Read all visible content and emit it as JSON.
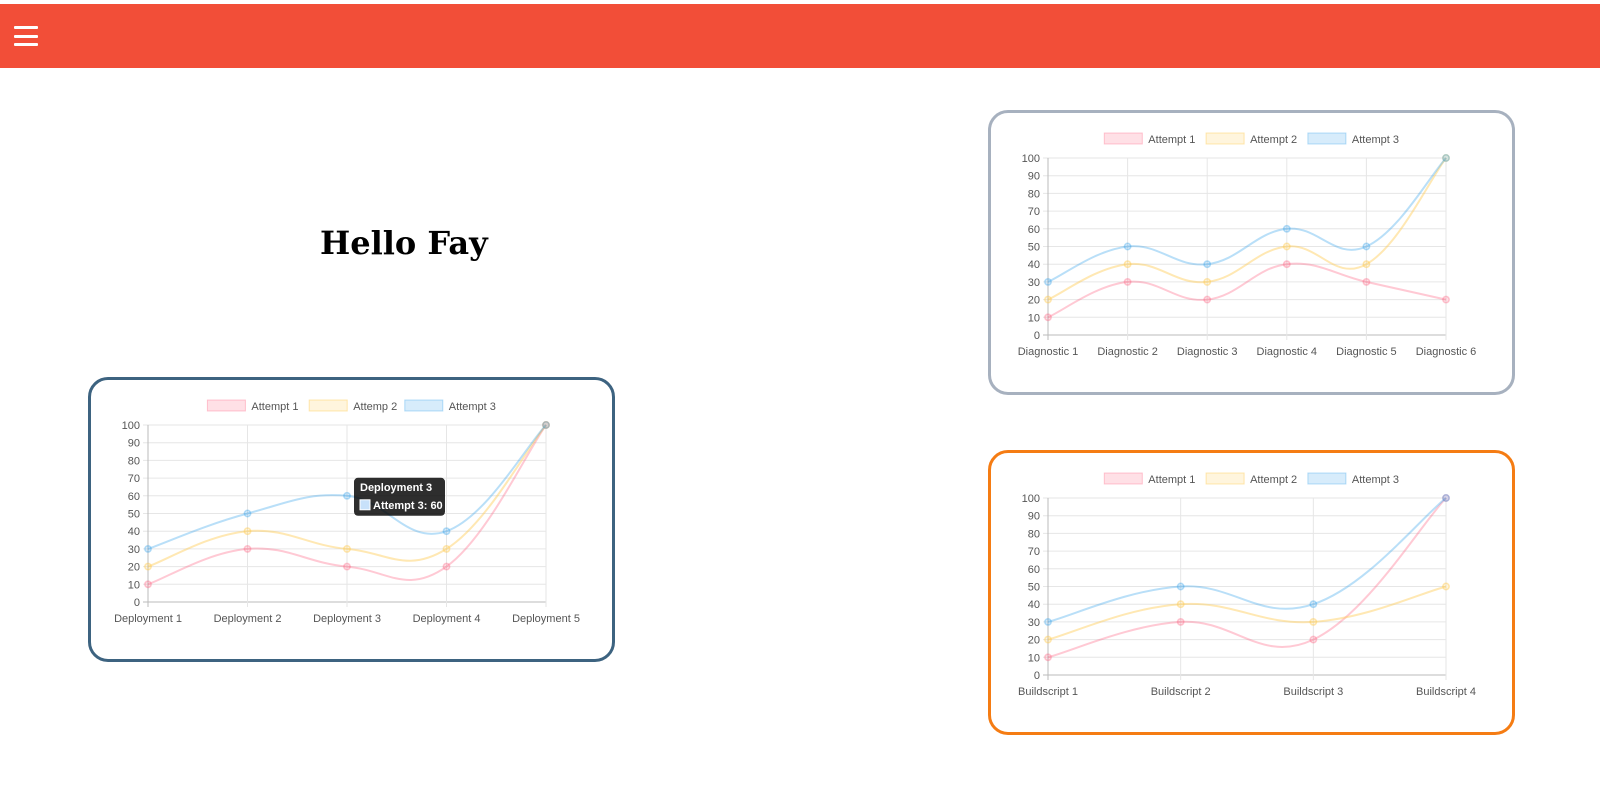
{
  "header": {
    "menu_icon": "hamburger-menu-icon",
    "background_color": "#f24e38"
  },
  "greeting": "Hello Fay",
  "series_colors": {
    "line": [
      "rgba(255,99,132,0.35)",
      "rgba(255,205,86,0.45)",
      "rgba(54,162,235,0.35)"
    ],
    "fill": [
      "rgba(255,99,132,0.2)",
      "rgba(255,205,86,0.2)",
      "rgba(54,162,235,0.2)"
    ]
  },
  "chart_data": [
    {
      "id": "deploy",
      "type": "line",
      "border_color": "#3d6380",
      "categories": [
        "Deployment 1",
        "Deployment 2",
        "Deployment 3",
        "Deployment 4",
        "Deployment 5"
      ],
      "series": [
        {
          "name": "Attempt 1",
          "values": [
            10,
            30,
            20,
            20,
            100
          ]
        },
        {
          "name": "Attemp 2",
          "values": [
            20,
            40,
            30,
            30,
            100
          ]
        },
        {
          "name": "Attempt 3",
          "values": [
            30,
            50,
            60,
            40,
            100
          ]
        }
      ],
      "ylim": [
        0,
        100
      ],
      "yticks": [
        0,
        10,
        20,
        30,
        40,
        50,
        60,
        70,
        80,
        90,
        100
      ],
      "grid": true,
      "legend": "top",
      "tooltip": {
        "title": "Deployment 3",
        "label": "Attempt 3: 60",
        "series_index": 2,
        "point_index": 2
      }
    },
    {
      "id": "diag",
      "type": "line",
      "border_color": "#a7b1bf",
      "categories": [
        "Diagnostic 1",
        "Diagnostic 2",
        "Diagnostic 3",
        "Diagnostic 4",
        "Diagnostic 5",
        "Diagnostic 6"
      ],
      "series": [
        {
          "name": "Attempt 1",
          "values": [
            10,
            30,
            20,
            40,
            30,
            20
          ]
        },
        {
          "name": "Attempt 2",
          "values": [
            20,
            40,
            30,
            50,
            40,
            100
          ]
        },
        {
          "name": "Attempt 3",
          "values": [
            30,
            50,
            40,
            60,
            50,
            100
          ]
        }
      ],
      "ylim": [
        0,
        100
      ],
      "yticks": [
        0,
        10,
        20,
        30,
        40,
        50,
        60,
        70,
        80,
        90,
        100
      ],
      "grid": true,
      "legend": "top"
    },
    {
      "id": "build",
      "type": "line",
      "border_color": "#f57c13",
      "categories": [
        "Buildscript 1",
        "Buildscript 2",
        "Buildscript 3",
        "Buildscript 4"
      ],
      "series": [
        {
          "name": "Attempt 1",
          "values": [
            10,
            30,
            20,
            100
          ]
        },
        {
          "name": "Attempt 2",
          "values": [
            20,
            40,
            30,
            50
          ]
        },
        {
          "name": "Attempt 3",
          "values": [
            30,
            50,
            40,
            100
          ]
        }
      ],
      "ylim": [
        0,
        100
      ],
      "yticks": [
        0,
        10,
        20,
        30,
        40,
        50,
        60,
        70,
        80,
        90,
        100
      ],
      "grid": true,
      "legend": "top"
    }
  ]
}
